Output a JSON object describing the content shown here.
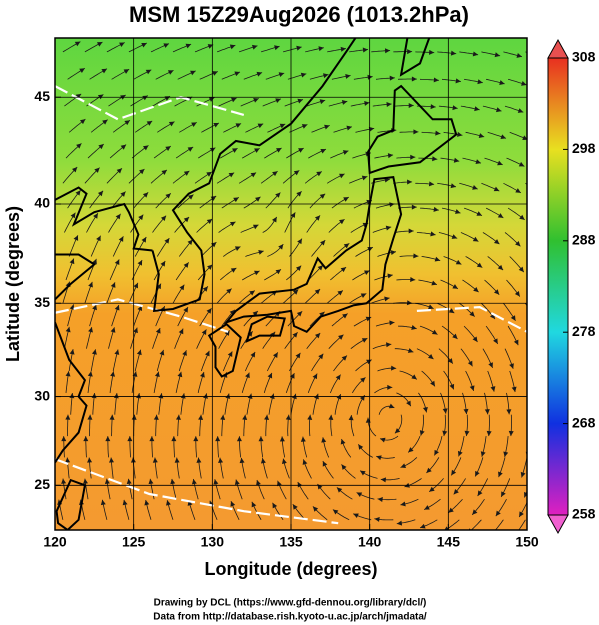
{
  "chart_data": {
    "type": "map",
    "title": "MSM 15Z29Aug2026 (1013.2hPa)",
    "xlabel": "Longitude (degrees)",
    "ylabel": "Latitude  (degrees)",
    "xlim": [
      120,
      150
    ],
    "xticks": [
      120,
      125,
      130,
      135,
      140,
      145,
      150
    ],
    "ylim": [
      22.4,
      47.6
    ],
    "yticks": [
      25,
      30,
      35,
      40,
      45
    ],
    "projection": "mercator",
    "grid": true,
    "colorbar": {
      "lim": [
        258,
        308
      ],
      "ticks": [
        258,
        268,
        278,
        288,
        298,
        308
      ]
    },
    "footer": [
      "Drawing by DCL (https://www.gfd-dennou.org/library/dcl/)",
      "Data from http://database.rish.kyoto-u.ac.jp/arch/jmadata/"
    ]
  }
}
